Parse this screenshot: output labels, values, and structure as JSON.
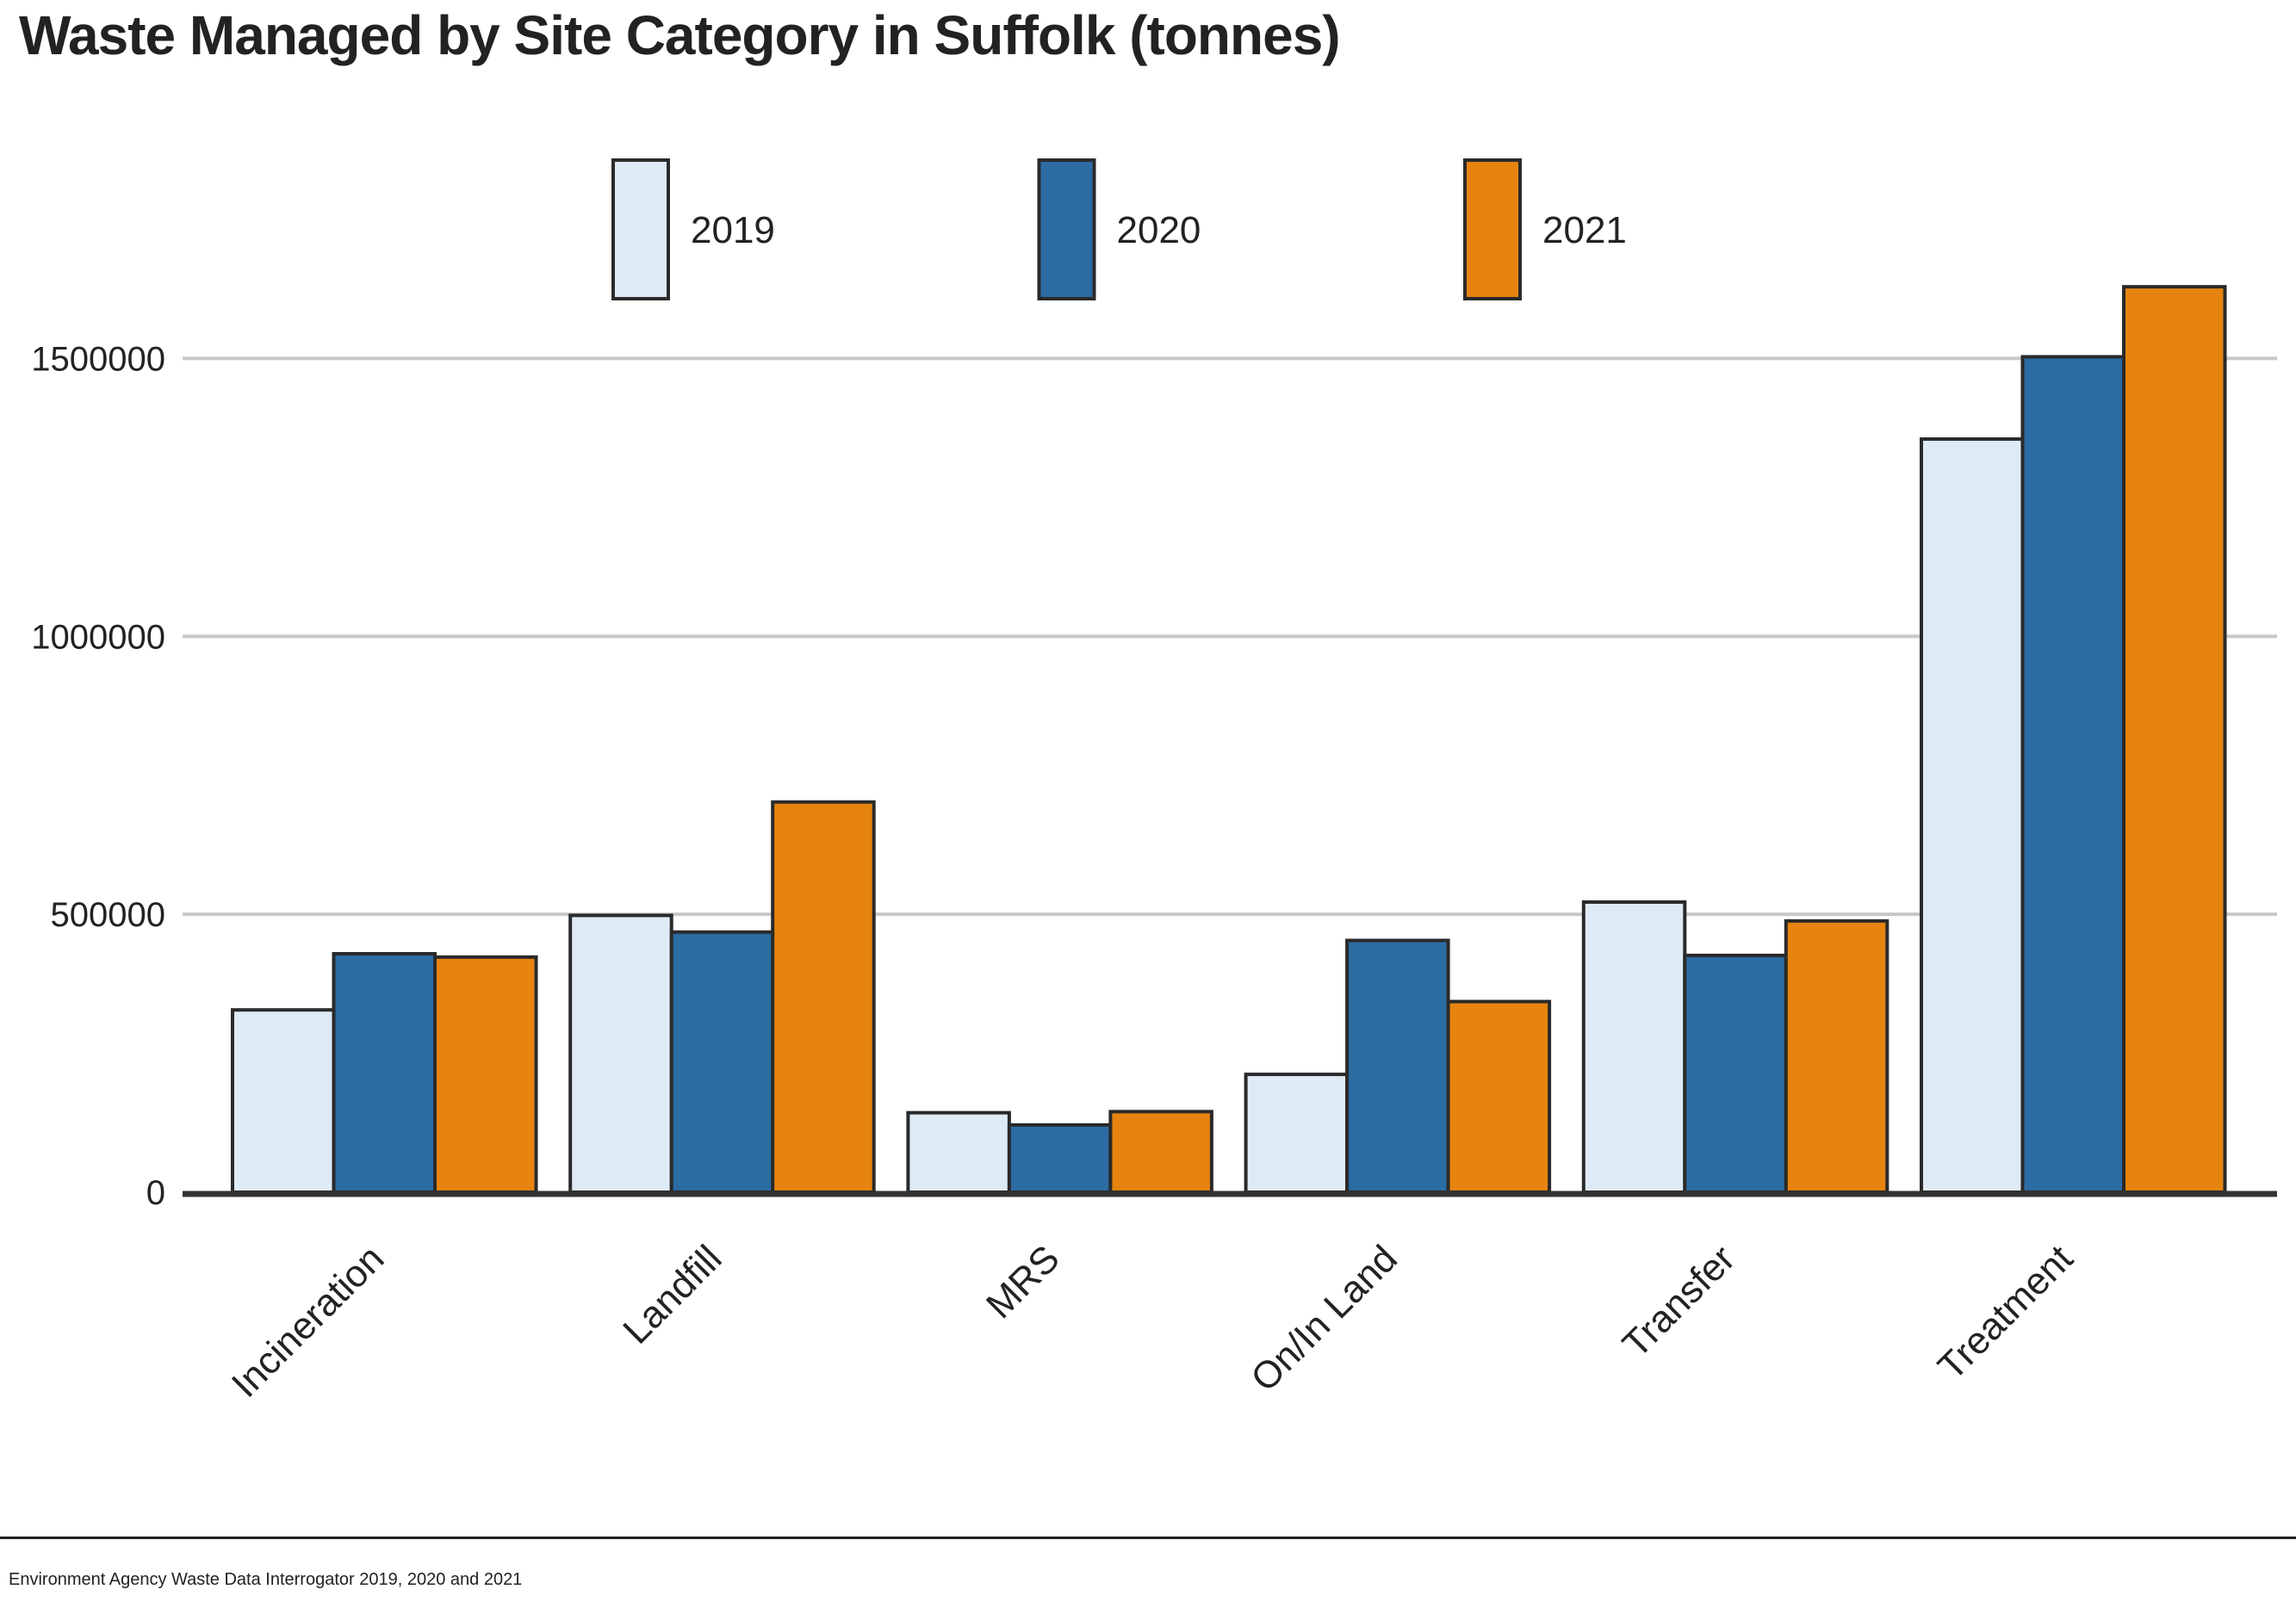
{
  "title": "Waste Managed by Site Category in Suffolk (tonnes)",
  "source": "Environment Agency Waste Data Interrogator 2019, 2020 and 2021",
  "chart_data": {
    "type": "bar",
    "title": "Waste Managed by Site Category in Suffolk (tonnes)",
    "xlabel": "",
    "ylabel": "",
    "categories": [
      "Incineration",
      "Landfill",
      "MRS",
      "On/In Land",
      "Transfer",
      "Treatment"
    ],
    "series": [
      {
        "name": "2019",
        "color": "#deebf7",
        "values": [
          328000,
          498000,
          143000,
          212000,
          522000,
          1355000
        ]
      },
      {
        "name": "2020",
        "color": "#2b6ca3",
        "values": [
          429000,
          468000,
          121000,
          453000,
          426000,
          1503000
        ]
      },
      {
        "name": "2021",
        "color": "#e6840f",
        "values": [
          423000,
          702000,
          145000,
          343000,
          488000,
          1629000
        ]
      }
    ],
    "ylim": [
      0,
      1750000
    ],
    "yticks": [
      0,
      500000,
      1000000,
      1500000
    ],
    "ytick_labels": [
      "0",
      "500000",
      "1000000",
      "1500000"
    ],
    "grid": "horizontal",
    "legend_position": "top"
  }
}
